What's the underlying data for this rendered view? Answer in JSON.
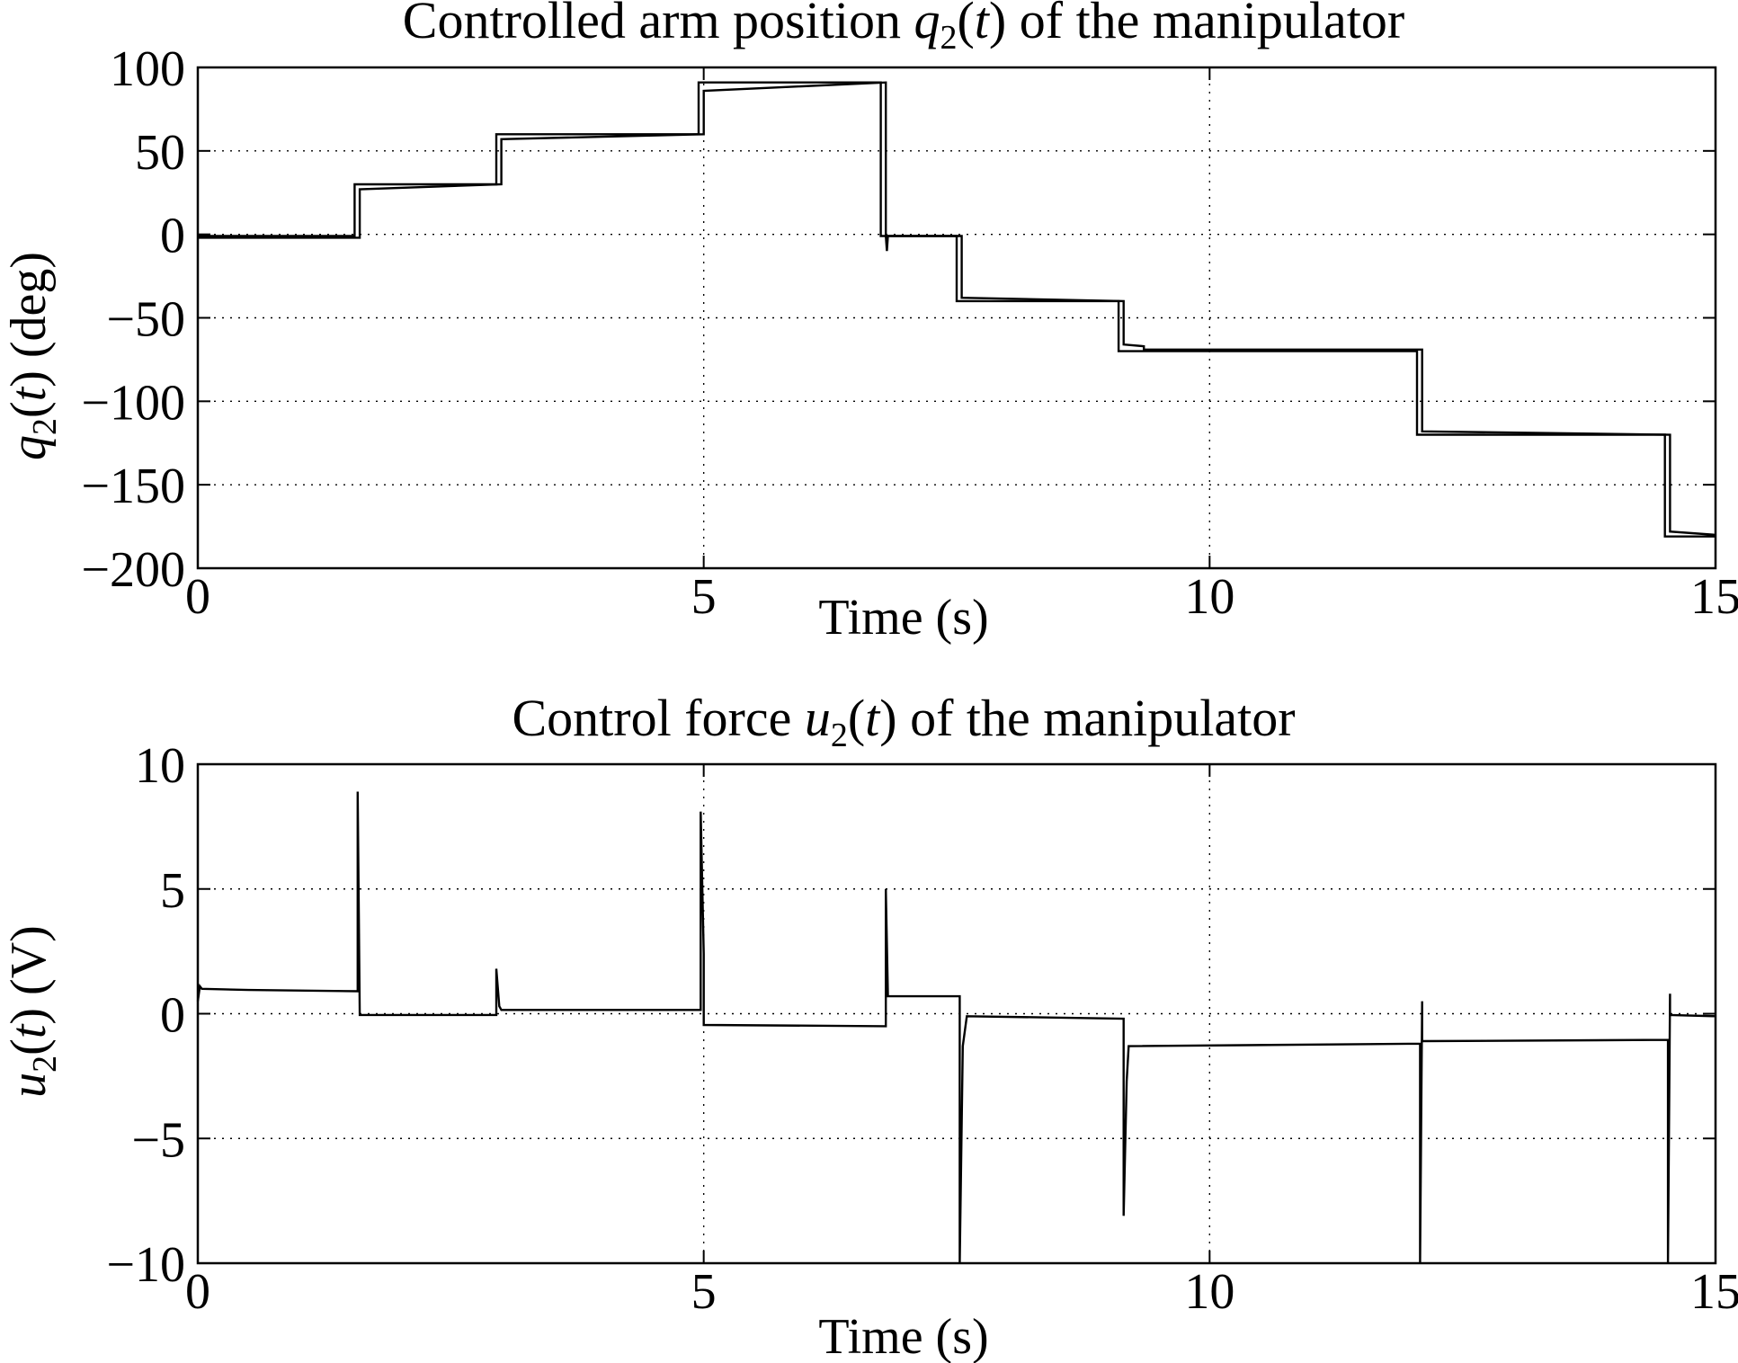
{
  "chart_data": [
    {
      "type": "line",
      "title": {
        "pre": "Controlled arm position ",
        "var": "q",
        "sub": "2",
        "open": "(",
        "arg": "t",
        "close": ")",
        "post": " of the manipulator"
      },
      "xlabel": "Time (s)",
      "ylabel": {
        "var": "q",
        "sub": "2",
        "open": "(",
        "arg": "t",
        "close": ")",
        "post": " (deg)"
      },
      "xlim": [
        0,
        15
      ],
      "ylim": [
        -200,
        100
      ],
      "xticks": [
        0,
        5,
        10,
        15
      ],
      "yticks": [
        100,
        50,
        0,
        -50,
        -100,
        -150,
        -200
      ],
      "xtick_labels": [
        "0",
        "5",
        "10",
        "15"
      ],
      "ytick_labels": [
        "100",
        "50",
        "0",
        "−50",
        "−100",
        "−150",
        "−200"
      ],
      "grid": true,
      "line_color": "#000000",
      "series": [
        {
          "x": [
            0,
            1.55,
            1.55,
            2.95,
            2.95,
            4.95,
            4.95,
            6.75,
            6.75,
            7.5,
            7.5,
            9.1,
            9.1,
            12.05,
            12.05,
            14.5,
            14.5,
            15
          ],
          "y": [
            -1,
            -1,
            30,
            30,
            60,
            60,
            91,
            91,
            -1,
            -1,
            -40,
            -40,
            -70,
            -70,
            -120,
            -120,
            -181,
            -181
          ]
        },
        {
          "x": [
            0,
            1.6,
            1.6,
            3.0,
            3.0,
            5.0,
            5.0,
            6.8,
            6.8,
            6.81,
            6.82,
            7.55,
            7.55,
            9.15,
            9.15,
            9.35,
            9.35,
            12.1,
            12.1,
            14.55,
            14.55,
            15
          ],
          "y": [
            -2,
            -2,
            27,
            30,
            57,
            60,
            86,
            91,
            -1,
            -10,
            -1,
            -1,
            -38,
            -40,
            -66,
            -67,
            -69,
            -69,
            -118,
            -120,
            -178,
            -180
          ]
        }
      ]
    },
    {
      "type": "line",
      "title": {
        "pre": "Control force ",
        "var": "u",
        "sub": "2",
        "open": "(",
        "arg": "t",
        "close": ")",
        "post": " of the manipulator"
      },
      "xlabel": "Time (s)",
      "ylabel": {
        "var": "u",
        "sub": "2",
        "open": "(",
        "arg": "t",
        "close": ")",
        "post": " (V)"
      },
      "xlim": [
        0,
        15
      ],
      "ylim": [
        -10,
        10
      ],
      "xticks": [
        0,
        5,
        10,
        15
      ],
      "yticks": [
        10,
        5,
        0,
        -5,
        -10
      ],
      "xtick_labels": [
        "0",
        "5",
        "10",
        "15"
      ],
      "ytick_labels": [
        "10",
        "5",
        "0",
        "−5",
        "−10"
      ],
      "grid": true,
      "line_color": "#000000",
      "series": [
        {
          "x": [
            0,
            0.02,
            0.04,
            0.5,
            1.58,
            1.58,
            1.6,
            1.6,
            2.95,
            2.95,
            2.98,
            3.0,
            4.97,
            4.97,
            5.0,
            5.0,
            6.8,
            6.8,
            6.82,
            6.82,
            7.53,
            7.53,
            7.56,
            7.6,
            9.15,
            9.15,
            9.18,
            9.2,
            12.08,
            12.08,
            12.1,
            12.1,
            14.53,
            14.53,
            14.55,
            14.55,
            15
          ],
          "y": [
            0.5,
            1.1,
            1.0,
            0.95,
            0.9,
            8.9,
            0.0,
            -0.05,
            -0.05,
            1.8,
            0.3,
            0.15,
            0.15,
            8.1,
            2.4,
            -0.45,
            -0.5,
            5.0,
            0.8,
            0.7,
            0.7,
            -10,
            -1.3,
            -0.1,
            -0.2,
            -8.1,
            -2.7,
            -1.3,
            -1.2,
            -10,
            0.5,
            -1.1,
            -1.05,
            -10,
            0.8,
            -0.05,
            -0.1
          ]
        }
      ]
    }
  ]
}
